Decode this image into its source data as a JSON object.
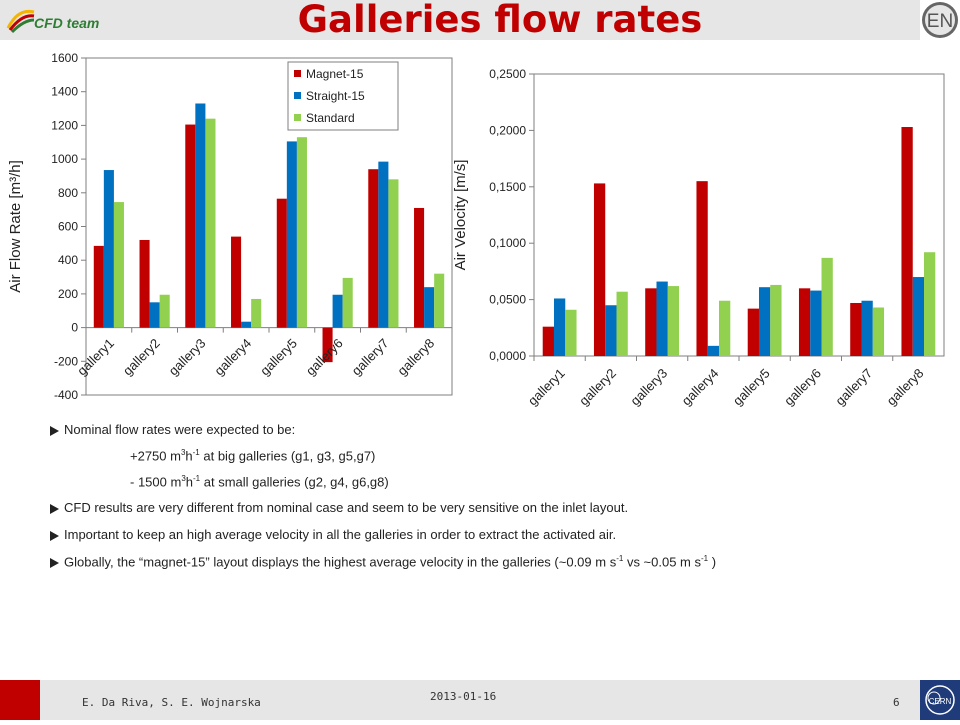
{
  "header": {
    "logo_text": "CFD team",
    "title": "Galleries flow rates",
    "badge": "EN"
  },
  "chart_data": [
    {
      "type": "bar",
      "categories": [
        "gallery1",
        "gallery2",
        "gallery3",
        "gallery4",
        "gallery5",
        "gallery6",
        "gallery7",
        "gallery8"
      ],
      "series": [
        {
          "name": "Magnet-15",
          "color": "#c00000",
          "values": [
            485,
            520,
            1205,
            540,
            765,
            -205,
            940,
            710
          ]
        },
        {
          "name": "Straight-15",
          "color": "#0070c0",
          "values": [
            935,
            150,
            1330,
            35,
            1105,
            195,
            985,
            240
          ]
        },
        {
          "name": "Standard",
          "color": "#92d050",
          "values": [
            745,
            195,
            1240,
            170,
            1130,
            295,
            880,
            320
          ]
        }
      ],
      "ylabel": "Air Flow Rate [m³/h]",
      "ylim": [
        -400,
        1600
      ],
      "yticks": [
        "-400",
        "-200",
        "0",
        "200",
        "400",
        "600",
        "800",
        "1000",
        "1200",
        "1400",
        "1600"
      ],
      "legend": "top-right"
    },
    {
      "type": "bar",
      "categories": [
        "gallery1",
        "gallery2",
        "gallery3",
        "gallery4",
        "gallery5",
        "gallery6",
        "gallery7",
        "gallery8"
      ],
      "series": [
        {
          "color": "#c00000",
          "values": [
            0.026,
            0.153,
            0.06,
            0.155,
            0.042,
            0.06,
            0.047,
            0.203
          ]
        },
        {
          "color": "#0070c0",
          "values": [
            0.051,
            0.045,
            0.066,
            0.009,
            0.061,
            0.058,
            0.049,
            0.07
          ]
        },
        {
          "color": "#92d050",
          "values": [
            0.041,
            0.057,
            0.062,
            0.049,
            0.063,
            0.087,
            0.043,
            0.092
          ]
        }
      ],
      "ylabel": "Air Velocity [m/s]",
      "ylim": [
        0,
        0.25
      ],
      "yticks": [
        "0,0000",
        "0,0500",
        "0,1000",
        "0,1500",
        "0,2000",
        "0,2500"
      ]
    }
  ],
  "bullets": [
    {
      "text": "Nominal flow rates were expected to be:"
    },
    {
      "pre": "+2750 m",
      "mid": "h",
      "post": " at big galleries (g1, g3, g5,g7)",
      "sup1": "3",
      "sup2": "-1"
    },
    {
      "pre": "- 1500 m",
      "mid": "h",
      "post": " at small galleries (g2, g4, g6,g8)",
      "sup1": "3",
      "sup2": "-1"
    },
    {
      "text": "CFD results are very different from nominal case and seem to be very sensitive on the inlet layout."
    },
    {
      "text": " Important to keep an high average velocity in all the galleries in order to extract the activated air."
    },
    {
      "pre": "Globally, the “magnet-15” layout displays the highest average velocity in the galleries (~0.09 m s",
      "sup1": "-1",
      "mid": " vs ~0.05 m s",
      "sup2": "-1",
      "post": " )"
    }
  ],
  "footer": {
    "authors": "E. Da Riva, S. E. Wojnarska",
    "date": "2013-01-16",
    "page": "6"
  }
}
